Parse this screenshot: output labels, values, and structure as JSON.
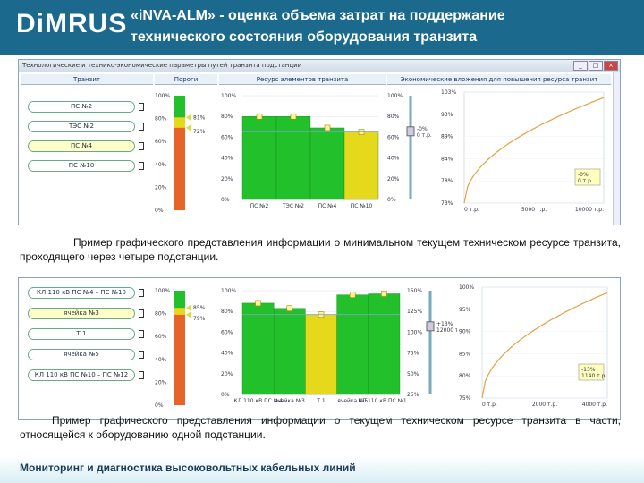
{
  "header": {
    "logo": "DiMRUS",
    "title_line1": "«iNVA-ALM» - оценка объема затрат на поддержание",
    "title_line2": "технического состояния оборудования транзита",
    "bg_color": "#1b6a8e"
  },
  "window1": {
    "title": "Технологические и технико-экономические параметры путей транзита подстанции",
    "col_transit": "Транзит",
    "col_thresholds": "Пороги",
    "col_resource": "Ресурс элементов транзита",
    "col_econ": "Экономические вложения для повышения ресурса транзит",
    "transit_items": [
      "ПС №2",
      "ТЭС №2",
      "ПС №4",
      "ПС №10"
    ],
    "selected_index": 2,
    "threshold_ticks": [
      "100%",
      "80%",
      "60%",
      "40%",
      "20%",
      "0%"
    ],
    "threshold_labels": [
      "81%",
      "72%"
    ],
    "resource_ticks": [
      "100%",
      "80%",
      "60%",
      "40%",
      "20%",
      "0%"
    ],
    "resource_categories": [
      "ПС №2",
      "ТЭС №2",
      "ПС №4",
      "ПС №10"
    ],
    "resource_values": [
      80,
      80,
      69,
      65
    ],
    "slider_ticks": [
      "100%",
      "80%",
      "60%",
      "40%",
      "20%",
      "0%"
    ],
    "slider_label": "-0% / 0 т.р.",
    "econ_yticks": [
      "103%",
      "93%",
      "89%",
      "84%",
      "78%",
      "73%"
    ],
    "econ_xticks": [
      "0 т.р.",
      "5000 т.р.",
      "10000 т.р."
    ],
    "econ_note_line1": "-0%",
    "econ_note_line2": "0 т.р."
  },
  "caption1": "Пример графического представления информации о минимальном текущем техническом ресурсе транзита, проходящего через четыре подстанции.",
  "window2": {
    "transit_items": [
      "КЛ 110 кВ ПС №4 – ПС №10",
      "ячейка №3",
      "Т 1",
      "ячейка №5",
      "КЛ 110 кВ ПС №10 – ПС №12"
    ],
    "selected_index": 1,
    "threshold_ticks": [
      "100%",
      "80%",
      "60%",
      "40%",
      "20%",
      "0%"
    ],
    "threshold_labels": [
      "85%",
      "79%"
    ],
    "resource_ticks": [
      "100%",
      "80%",
      "60%",
      "40%",
      "20%",
      "0%"
    ],
    "resource_categories": [
      "КЛ 110 кВ ПС №4",
      "ячейка №3",
      "Т 1",
      "ячейка №5",
      "КЛ 110 кВ ПС №10"
    ],
    "resource_values": [
      88,
      83,
      77,
      96,
      97
    ],
    "slider_ticks": [
      "150%",
      "125%",
      "100%",
      "75%",
      "50%",
      "25%"
    ],
    "slider_label": "+13% / 12000 т.р.",
    "econ_yticks": [
      "100%",
      "95%",
      "90%",
      "85%",
      "80%",
      "75%"
    ],
    "econ_xticks": [
      "0 т.р.",
      "2000 т.р.",
      "4000 т.р."
    ],
    "econ_note_line1": "-13%",
    "econ_note_line2": "1140 т.р."
  },
  "caption2": "Пример графического представления информации о текущем техническом ресурсе транзита в части, относящейся к оборудованию одной подстанции.",
  "footer": "Мониторинг и диагностика высоковольтных кабельных линий",
  "colors": {
    "green": "#22c02a",
    "yellow": "#e6d81a",
    "orange": "#e8632a",
    "curve": "#e8a040",
    "grid": "#7aa6c6"
  }
}
